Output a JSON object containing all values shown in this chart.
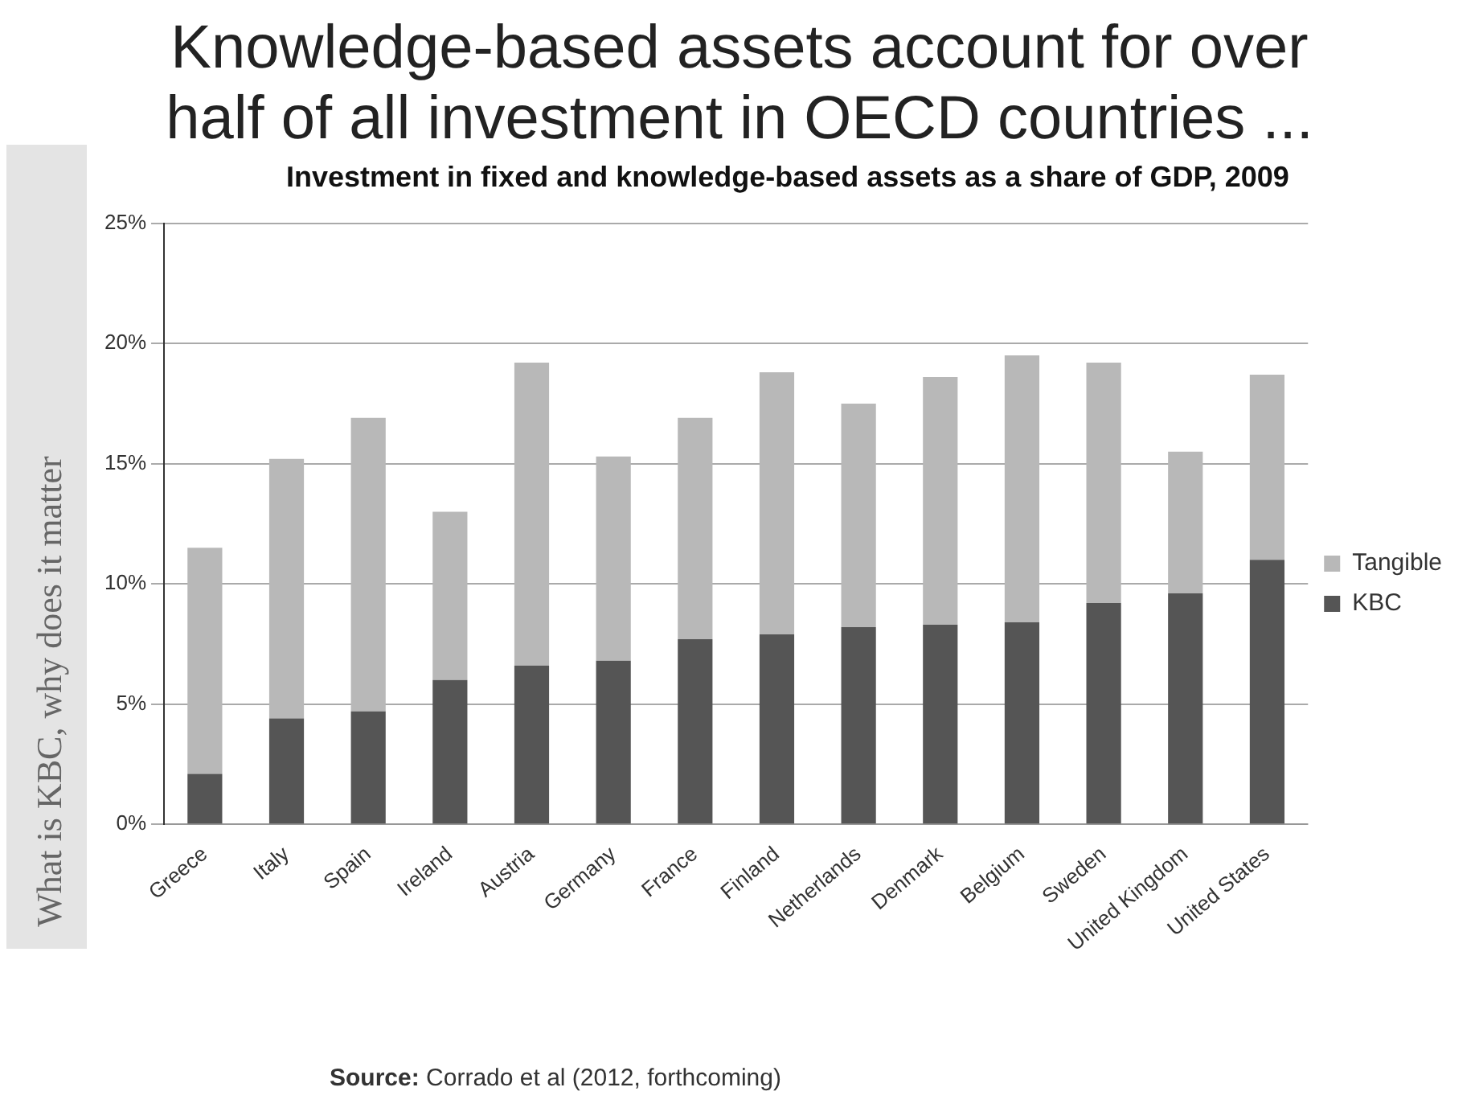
{
  "chart_data": {
    "type": "bar",
    "title": "Knowledge-based assets account for over half of all investment in OECD countries ...",
    "subtitle": "Investment in fixed and knowledge-based assets as a share of GDP, 2009",
    "categories": [
      "Greece",
      "Italy",
      "Spain",
      "Ireland",
      "Austria",
      "Germany",
      "France",
      "Finland",
      "Netherlands",
      "Denmark",
      "Belgium",
      "Sweden",
      "United Kingdom",
      "United States"
    ],
    "series": [
      {
        "name": "KBC",
        "color": "#555555",
        "values": [
          2.1,
          4.4,
          4.7,
          6.0,
          6.6,
          6.8,
          7.7,
          7.9,
          8.2,
          8.3,
          8.4,
          9.2,
          9.6,
          11.0
        ]
      },
      {
        "name": "Tangible",
        "color": "#b8b8b8",
        "values": [
          9.4,
          10.8,
          12.2,
          7.0,
          12.6,
          8.5,
          9.2,
          10.9,
          9.3,
          10.3,
          11.1,
          10.0,
          5.9,
          7.7
        ]
      }
    ],
    "stacked": true,
    "ylim": [
      0,
      25
    ],
    "yticks": [
      {
        "value": 0,
        "label": "0%"
      },
      {
        "value": 5,
        "label": "5%"
      },
      {
        "value": 10,
        "label": "10%"
      },
      {
        "value": 15,
        "label": "15%"
      },
      {
        "value": 20,
        "label": "20%"
      },
      {
        "value": 25,
        "label": "25%"
      }
    ],
    "grid": "y",
    "legend": "right",
    "annotations": [
      "What is KBC, why does it matter",
      "Source: Corrado et al (2012, forthcoming)"
    ]
  }
}
